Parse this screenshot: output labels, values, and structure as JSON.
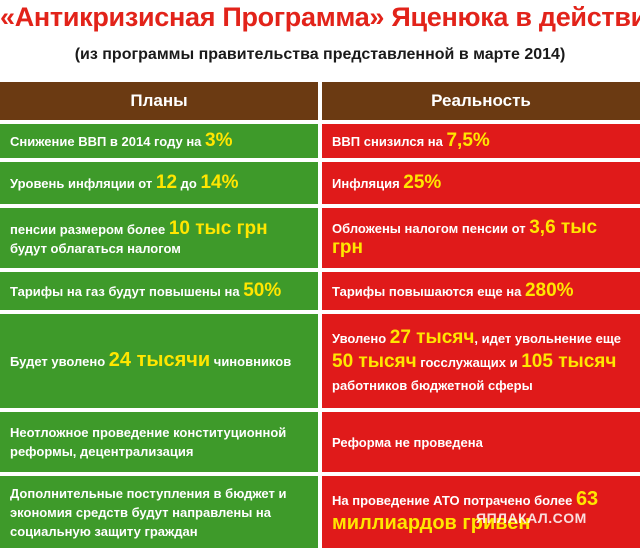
{
  "title": "«Антикризисная Программа» Яценюка в действии",
  "subtitle": "(из программы правительства представленной в марте 2014)",
  "headers": {
    "plans": "Планы",
    "reality": "Реальность"
  },
  "rows": [
    {
      "plan": {
        "a": "Снижение ВВП в 2014 году на ",
        "b": "3%"
      },
      "real": {
        "a": "ВВП снизился на ",
        "b": "7,5%"
      }
    },
    {
      "plan": {
        "a": "Уровень инфляции от ",
        "b": "12",
        "c": " до ",
        "d": "14%"
      },
      "real": {
        "a": "Инфляция ",
        "b": "25%"
      }
    },
    {
      "plan": {
        "a": "пенсии размером более ",
        "b": "10 тыс грн",
        "c": " будут облагаться налогом"
      },
      "real": {
        "a": "Обложены налогом пенсии от ",
        "b": "3,6 тыс грн"
      }
    },
    {
      "plan": {
        "a": "Тарифы на газ будут повышены на ",
        "b": "50%"
      },
      "real": {
        "a": "Тарифы повышаются еще на ",
        "b": "280%"
      }
    },
    {
      "plan": {
        "a": "Будет уволено ",
        "b": "24 тысячи",
        "c": " чиновников"
      },
      "real": {
        "a": "Уволено ",
        "b": "27 тысяч",
        "c": ", идет увольнение еще ",
        "d": "50 тысяч",
        "e": " госслужащих и ",
        "f": "105 тысяч",
        "g": " работников бюджетной сферы"
      }
    },
    {
      "plan": {
        "a": "Неотложное проведение конституционной реформы, децентрализация"
      },
      "real": {
        "a": "Реформа не проведена"
      }
    },
    {
      "plan": {
        "a": "Дополнительные поступления в бюджет и экономия средств будут направлены на социальную защиту граждан"
      },
      "real": {
        "a": "На проведение АТО потрачено более ",
        "b": "63 миллиардов гривен"
      }
    }
  ],
  "watermark": "ЯПЛАКАЛ.COM",
  "colors": {
    "title": "#e2231a",
    "header_bg": "#6b3a12",
    "plan_bg": "#3e9a2a",
    "reality_bg": "#e01a1a",
    "highlight": "#ffe600"
  }
}
